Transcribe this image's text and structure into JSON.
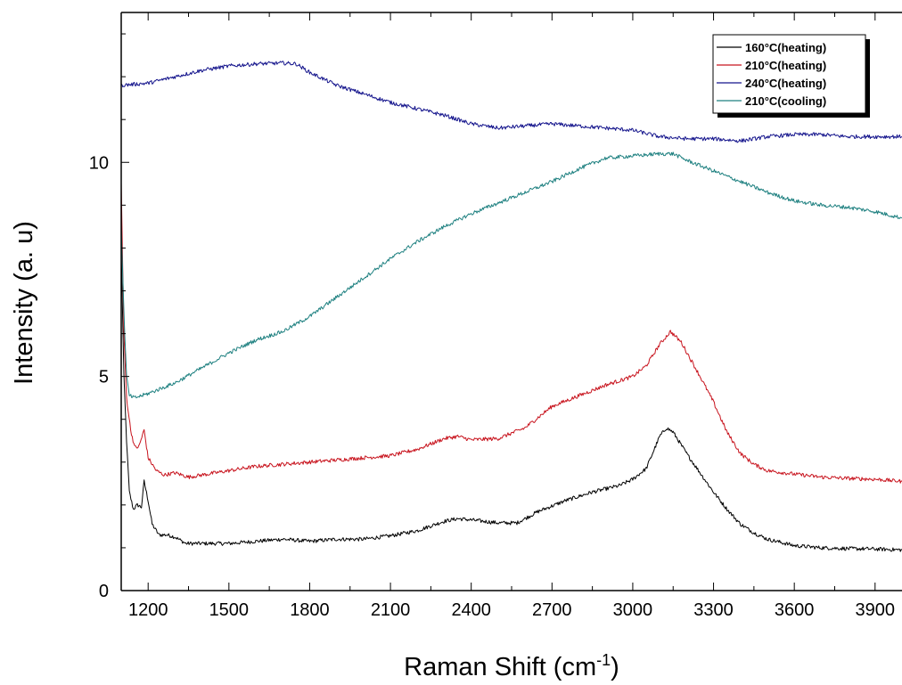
{
  "chart_data": {
    "type": "line",
    "title": "",
    "xlabel": "Raman Shift (cm",
    "xlabel_superscript": "-1",
    "xlabel_suffix": ")",
    "ylabel": "Intensity (a. u)",
    "xlim": [
      1100,
      4000
    ],
    "ylim": [
      0,
      13.5
    ],
    "x_ticks": [
      1200,
      1500,
      1800,
      2100,
      2400,
      2700,
      3000,
      3300,
      3600,
      3900
    ],
    "y_ticks": [
      0,
      5,
      10
    ],
    "grid": false,
    "legend_position": "top-right",
    "series": [
      {
        "name": "160°C(heating)",
        "color": "#000000",
        "points": [
          [
            1100,
            8.0
          ],
          [
            1110,
            5.0
          ],
          [
            1120,
            3.5
          ],
          [
            1130,
            2.3
          ],
          [
            1145,
            1.9
          ],
          [
            1160,
            2.0
          ],
          [
            1175,
            1.95
          ],
          [
            1185,
            2.55
          ],
          [
            1200,
            2.1
          ],
          [
            1215,
            1.55
          ],
          [
            1240,
            1.3
          ],
          [
            1270,
            1.3
          ],
          [
            1300,
            1.25
          ],
          [
            1340,
            1.1
          ],
          [
            1400,
            1.1
          ],
          [
            1500,
            1.1
          ],
          [
            1600,
            1.15
          ],
          [
            1700,
            1.2
          ],
          [
            1800,
            1.15
          ],
          [
            1900,
            1.2
          ],
          [
            2000,
            1.2
          ],
          [
            2100,
            1.28
          ],
          [
            2200,
            1.4
          ],
          [
            2300,
            1.62
          ],
          [
            2350,
            1.68
          ],
          [
            2400,
            1.65
          ],
          [
            2500,
            1.58
          ],
          [
            2570,
            1.58
          ],
          [
            2650,
            1.85
          ],
          [
            2750,
            2.1
          ],
          [
            2850,
            2.3
          ],
          [
            2950,
            2.45
          ],
          [
            3000,
            2.6
          ],
          [
            3050,
            2.85
          ],
          [
            3100,
            3.6
          ],
          [
            3125,
            3.8
          ],
          [
            3150,
            3.7
          ],
          [
            3200,
            3.2
          ],
          [
            3250,
            2.75
          ],
          [
            3300,
            2.3
          ],
          [
            3350,
            1.9
          ],
          [
            3400,
            1.55
          ],
          [
            3450,
            1.35
          ],
          [
            3500,
            1.2
          ],
          [
            3600,
            1.05
          ],
          [
            3700,
            1.0
          ],
          [
            3800,
            0.98
          ],
          [
            3900,
            0.97
          ],
          [
            4000,
            0.95
          ]
        ]
      },
      {
        "name": "210°C(heating)",
        "color": "#c8141e",
        "points": [
          [
            1100,
            9.5
          ],
          [
            1110,
            6.0
          ],
          [
            1120,
            4.5
          ],
          [
            1135,
            3.75
          ],
          [
            1150,
            3.35
          ],
          [
            1165,
            3.35
          ],
          [
            1185,
            3.75
          ],
          [
            1200,
            3.1
          ],
          [
            1230,
            2.8
          ],
          [
            1260,
            2.7
          ],
          [
            1300,
            2.75
          ],
          [
            1350,
            2.65
          ],
          [
            1400,
            2.7
          ],
          [
            1500,
            2.8
          ],
          [
            1600,
            2.9
          ],
          [
            1700,
            2.95
          ],
          [
            1800,
            3.0
          ],
          [
            1900,
            3.05
          ],
          [
            2000,
            3.1
          ],
          [
            2100,
            3.15
          ],
          [
            2200,
            3.3
          ],
          [
            2300,
            3.55
          ],
          [
            2350,
            3.6
          ],
          [
            2400,
            3.52
          ],
          [
            2500,
            3.55
          ],
          [
            2600,
            3.8
          ],
          [
            2700,
            4.3
          ],
          [
            2800,
            4.55
          ],
          [
            2900,
            4.8
          ],
          [
            3000,
            5.0
          ],
          [
            3050,
            5.25
          ],
          [
            3100,
            5.75
          ],
          [
            3140,
            6.05
          ],
          [
            3180,
            5.8
          ],
          [
            3250,
            5.0
          ],
          [
            3300,
            4.4
          ],
          [
            3350,
            3.7
          ],
          [
            3400,
            3.2
          ],
          [
            3450,
            2.95
          ],
          [
            3500,
            2.8
          ],
          [
            3600,
            2.72
          ],
          [
            3700,
            2.65
          ],
          [
            3800,
            2.62
          ],
          [
            3900,
            2.6
          ],
          [
            4000,
            2.55
          ]
        ]
      },
      {
        "name": "240°C(heating)",
        "color": "#14148c",
        "points": [
          [
            1100,
            11.8
          ],
          [
            1200,
            11.85
          ],
          [
            1300,
            12.0
          ],
          [
            1400,
            12.15
          ],
          [
            1500,
            12.25
          ],
          [
            1600,
            12.3
          ],
          [
            1700,
            12.32
          ],
          [
            1750,
            12.3
          ],
          [
            1800,
            12.1
          ],
          [
            1900,
            11.8
          ],
          [
            2000,
            11.6
          ],
          [
            2100,
            11.4
          ],
          [
            2200,
            11.25
          ],
          [
            2300,
            11.1
          ],
          [
            2400,
            10.9
          ],
          [
            2500,
            10.8
          ],
          [
            2600,
            10.85
          ],
          [
            2700,
            10.9
          ],
          [
            2800,
            10.85
          ],
          [
            2900,
            10.8
          ],
          [
            3000,
            10.75
          ],
          [
            3100,
            10.6
          ],
          [
            3200,
            10.55
          ],
          [
            3300,
            10.55
          ],
          [
            3400,
            10.5
          ],
          [
            3500,
            10.6
          ],
          [
            3600,
            10.65
          ],
          [
            3700,
            10.65
          ],
          [
            3800,
            10.6
          ],
          [
            3900,
            10.6
          ],
          [
            4000,
            10.6
          ]
        ]
      },
      {
        "name": "210°C(cooling)",
        "color": "#1e8080",
        "points": [
          [
            1100,
            8.5
          ],
          [
            1110,
            6.5
          ],
          [
            1120,
            5.0
          ],
          [
            1130,
            4.55
          ],
          [
            1150,
            4.5
          ],
          [
            1200,
            4.6
          ],
          [
            1300,
            4.85
          ],
          [
            1400,
            5.2
          ],
          [
            1500,
            5.55
          ],
          [
            1600,
            5.85
          ],
          [
            1700,
            6.05
          ],
          [
            1800,
            6.4
          ],
          [
            1900,
            6.85
          ],
          [
            2000,
            7.3
          ],
          [
            2100,
            7.75
          ],
          [
            2200,
            8.15
          ],
          [
            2300,
            8.5
          ],
          [
            2400,
            8.8
          ],
          [
            2500,
            9.05
          ],
          [
            2600,
            9.3
          ],
          [
            2700,
            9.55
          ],
          [
            2800,
            9.85
          ],
          [
            2900,
            10.1
          ],
          [
            3000,
            10.15
          ],
          [
            3100,
            10.2
          ],
          [
            3150,
            10.2
          ],
          [
            3200,
            10.05
          ],
          [
            3300,
            9.8
          ],
          [
            3400,
            9.55
          ],
          [
            3500,
            9.3
          ],
          [
            3600,
            9.1
          ],
          [
            3700,
            9.0
          ],
          [
            3800,
            8.95
          ],
          [
            3900,
            8.85
          ],
          [
            4000,
            8.7
          ]
        ]
      }
    ]
  }
}
